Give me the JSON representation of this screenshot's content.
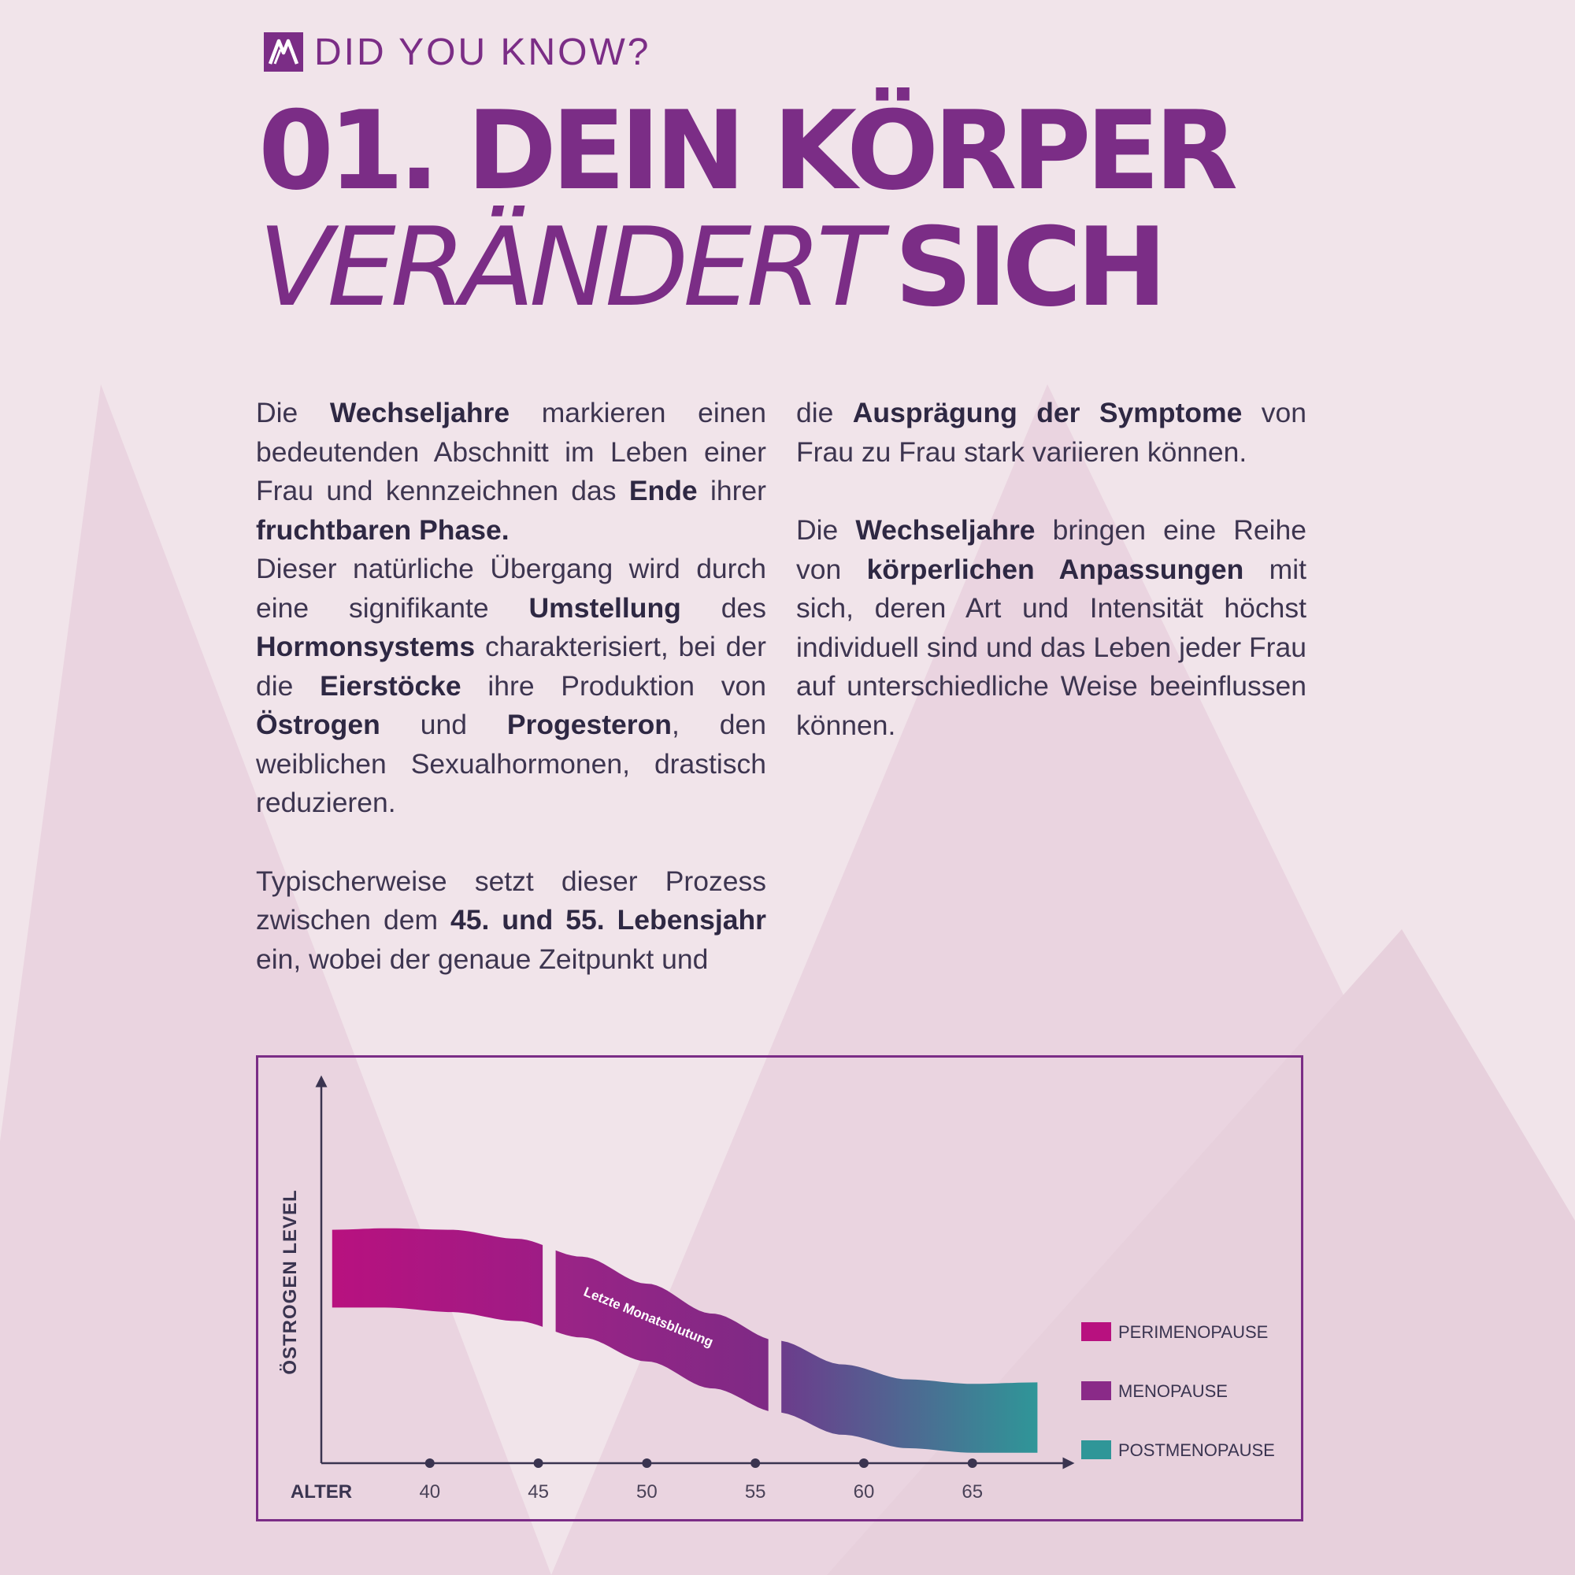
{
  "kicker": "DID YOU KNOW?",
  "logo": {
    "icon": "brand-m-logo-icon",
    "color": "#7b2d86"
  },
  "headline": {
    "line1": "01. DEIN KÖRPER",
    "line2_italic": "VERÄNDERT",
    "line2_bold": "SICH"
  },
  "body": {
    "left": {
      "p1": [
        {
          "t": "Die "
        },
        {
          "t": "Wechseljahre",
          "b": true
        },
        {
          "t": " markieren einen bedeutenden Abschnitt im Leben einer Frau und kennzeichnen das "
        },
        {
          "t": "Ende",
          "b": true
        },
        {
          "t": " ihrer "
        },
        {
          "t": "fruchtbaren Phase.",
          "b": true
        }
      ],
      "p2": [
        {
          "t": "Dieser natürliche Übergang wird durch eine signifikante "
        },
        {
          "t": "Umstellung",
          "b": true
        },
        {
          "t": " des "
        },
        {
          "t": "Hormonsystems",
          "b": true
        },
        {
          "t": " charakterisiert, bei der die "
        },
        {
          "t": "Eierstöcke",
          "b": true
        },
        {
          "t": " ihre Produktion von "
        },
        {
          "t": "Östrogen",
          "b": true
        },
        {
          "t": " und "
        },
        {
          "t": "Progesteron",
          "b": true
        },
        {
          "t": ", den weiblichen Sexualhormonen, drastisch reduzieren."
        }
      ],
      "p3": [
        {
          "t": "Typischerweise setzt dieser Prozess zwischen dem "
        },
        {
          "t": "45. und 55. Lebensjahr",
          "b": true
        },
        {
          "t": " ein, wobei der genaue Zeitpunkt und"
        }
      ]
    },
    "right": {
      "p1": [
        {
          "t": "die "
        },
        {
          "t": "Ausprägung der Symptome",
          "b": true
        },
        {
          "t": " von Frau zu Frau stark variieren können."
        }
      ],
      "p2": [
        {
          "t": "Die "
        },
        {
          "t": "Wechseljahre",
          "b": true
        },
        {
          "t": " bringen eine Reihe von "
        },
        {
          "t": "körperlichen Anpassungen",
          "b": true
        },
        {
          "t": " mit sich, deren Art und Intensität höchst individuell sind und das Leben jeder Frau auf unterschiedliche Weise beeinflussen können."
        }
      ]
    }
  },
  "chart_data": {
    "type": "area",
    "xlabel": "ALTER",
    "ylabel": "ÖSTROGEN LEVEL",
    "x_ticks": [
      40,
      45,
      50,
      55,
      60,
      65
    ],
    "xlim": [
      35,
      69
    ],
    "ylim": [
      0,
      10
    ],
    "band_top": [
      [
        35.5,
        7.8
      ],
      [
        38,
        7.85
      ],
      [
        41,
        7.8
      ],
      [
        44,
        7.5
      ],
      [
        47,
        6.9
      ],
      [
        50,
        6.0
      ],
      [
        53,
        5.0
      ],
      [
        56,
        4.1
      ],
      [
        59,
        3.3
      ],
      [
        62,
        2.8
      ],
      [
        65,
        2.65
      ],
      [
        68,
        2.7
      ]
    ],
    "band_bottom": [
      [
        35.5,
        5.2
      ],
      [
        38,
        5.2
      ],
      [
        41,
        5.05
      ],
      [
        44,
        4.75
      ],
      [
        47,
        4.2
      ],
      [
        50,
        3.4
      ],
      [
        53,
        2.5
      ],
      [
        56,
        1.7
      ],
      [
        59,
        0.95
      ],
      [
        62,
        0.5
      ],
      [
        65,
        0.35
      ],
      [
        68,
        0.35
      ]
    ],
    "segments": [
      {
        "name": "PERIMENOPAUSE",
        "from": 35.5,
        "to": 45.2,
        "colors": [
          "#b8117f",
          "#9e1c85"
        ]
      },
      {
        "name": "MENOPAUSE",
        "from": 45.8,
        "to": 55.6,
        "colors": [
          "#9b2386",
          "#7e2a85"
        ]
      },
      {
        "name": "POSTMENOPAUSE",
        "from": 56.2,
        "to": 68,
        "colors": [
          "#6c3c8c",
          "#2f9698"
        ]
      }
    ],
    "annotation": {
      "text": "Letzte Monatsblutung",
      "x": 50,
      "y": 4.75
    },
    "legend": [
      {
        "label": "PERIMENOPAUSE",
        "color": "#b8117f"
      },
      {
        "label": "MENOPAUSE",
        "color": "#8a2a88"
      },
      {
        "label": "POSTMENOPAUSE",
        "color": "#2f9698"
      }
    ],
    "legend_position": "right"
  }
}
